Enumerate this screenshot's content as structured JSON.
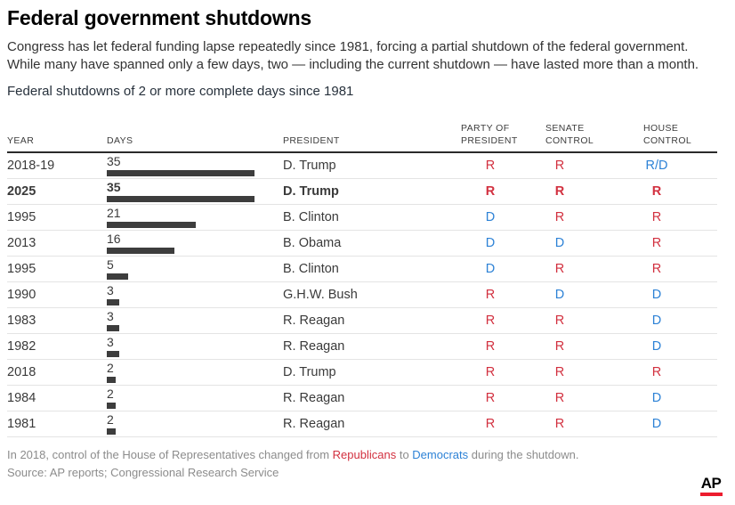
{
  "colors": {
    "republican_red": "#d2303f",
    "democrat_blue": "#2d82d6",
    "bar_gray": "#3d3d3d",
    "logo_red": "#ec1c2e"
  },
  "header": {
    "title": "Federal government shutdowns",
    "description": "Congress has let federal funding lapse repeatedly since 1981, forcing a partial shutdown of the federal government. While many have spanned only a few days, two — including the current shutdown — have lasted more than a month.",
    "subtitle": "Federal shutdowns of 2 or more complete days since 1981"
  },
  "table": {
    "columns": [
      {
        "key": "year",
        "label": "YEAR"
      },
      {
        "key": "days",
        "label": "DAYS"
      },
      {
        "key": "president",
        "label": "PRESIDENT"
      },
      {
        "key": "party",
        "label": "PARTY OF\nPRESIDENT"
      },
      {
        "key": "senate",
        "label": "SENATE\nCONTROL"
      },
      {
        "key": "house",
        "label": "HOUSE\nCONTROL"
      }
    ],
    "rows": [
      {
        "year": "2018-19",
        "days": 35,
        "president": "D. Trump",
        "party": {
          "text": "R",
          "color": "red"
        },
        "senate": {
          "text": "R",
          "color": "red"
        },
        "house": {
          "text": "R/D",
          "color": "blue"
        },
        "bold": false
      },
      {
        "year": "2025",
        "days": 35,
        "president": "D. Trump",
        "party": {
          "text": "R",
          "color": "red"
        },
        "senate": {
          "text": "R",
          "color": "red"
        },
        "house": {
          "text": "R",
          "color": "red"
        },
        "bold": true
      },
      {
        "year": "1995",
        "days": 21,
        "president": "B. Clinton",
        "party": {
          "text": "D",
          "color": "blue"
        },
        "senate": {
          "text": "R",
          "color": "red"
        },
        "house": {
          "text": "R",
          "color": "red"
        },
        "bold": false
      },
      {
        "year": "2013",
        "days": 16,
        "president": "B. Obama",
        "party": {
          "text": "D",
          "color": "blue"
        },
        "senate": {
          "text": "D",
          "color": "blue"
        },
        "house": {
          "text": "R",
          "color": "red"
        },
        "bold": false
      },
      {
        "year": "1995",
        "days": 5,
        "president": "B. Clinton",
        "party": {
          "text": "D",
          "color": "blue"
        },
        "senate": {
          "text": "R",
          "color": "red"
        },
        "house": {
          "text": "R",
          "color": "red"
        },
        "bold": false
      },
      {
        "year": "1990",
        "days": 3,
        "president": "G.H.W. Bush",
        "party": {
          "text": "R",
          "color": "red"
        },
        "senate": {
          "text": "D",
          "color": "blue"
        },
        "house": {
          "text": "D",
          "color": "blue"
        },
        "bold": false
      },
      {
        "year": "1983",
        "days": 3,
        "president": "R. Reagan",
        "party": {
          "text": "R",
          "color": "red"
        },
        "senate": {
          "text": "R",
          "color": "red"
        },
        "house": {
          "text": "D",
          "color": "blue"
        },
        "bold": false
      },
      {
        "year": "1982",
        "days": 3,
        "president": "R. Reagan",
        "party": {
          "text": "R",
          "color": "red"
        },
        "senate": {
          "text": "R",
          "color": "red"
        },
        "house": {
          "text": "D",
          "color": "blue"
        },
        "bold": false
      },
      {
        "year": "2018",
        "days": 2,
        "president": "D. Trump",
        "party": {
          "text": "R",
          "color": "red"
        },
        "senate": {
          "text": "R",
          "color": "red"
        },
        "house": {
          "text": "R",
          "color": "red"
        },
        "bold": false
      },
      {
        "year": "1984",
        "days": 2,
        "president": "R. Reagan",
        "party": {
          "text": "R",
          "color": "red"
        },
        "senate": {
          "text": "R",
          "color": "red"
        },
        "house": {
          "text": "D",
          "color": "blue"
        },
        "bold": false
      },
      {
        "year": "1981",
        "days": 2,
        "president": "R. Reagan",
        "party": {
          "text": "R",
          "color": "red"
        },
        "senate": {
          "text": "R",
          "color": "red"
        },
        "house": {
          "text": "D",
          "color": "blue"
        },
        "bold": false
      }
    ]
  },
  "chart_data": {
    "type": "bar",
    "orientation": "horizontal",
    "title": "Federal shutdowns of 2 or more complete days since 1981",
    "categories": [
      "2018-19",
      "2025",
      "1995",
      "2013",
      "1995",
      "1990",
      "1983",
      "1982",
      "2018",
      "1984",
      "1981"
    ],
    "values": [
      35,
      35,
      21,
      16,
      5,
      3,
      3,
      3,
      2,
      2,
      2
    ],
    "series_name": "Days",
    "xlabel": "DAYS",
    "ylabel": "YEAR",
    "xlim": [
      0,
      35
    ],
    "grid": false,
    "bar_color": "#3d3d3d",
    "annotations": {
      "presidents": [
        "D. Trump",
        "D. Trump",
        "B. Clinton",
        "B. Obama",
        "B. Clinton",
        "G.H.W. Bush",
        "R. Reagan",
        "R. Reagan",
        "D. Trump",
        "R. Reagan",
        "R. Reagan"
      ],
      "party_of_president": [
        "R",
        "R",
        "D",
        "D",
        "D",
        "R",
        "R",
        "R",
        "R",
        "R",
        "R"
      ],
      "senate_control": [
        "R",
        "R",
        "R",
        "D",
        "R",
        "D",
        "R",
        "R",
        "R",
        "R",
        "R"
      ],
      "house_control": [
        "R/D",
        "R",
        "R",
        "R",
        "R",
        "D",
        "D",
        "D",
        "R",
        "D",
        "D"
      ],
      "highlighted_row": "2025"
    }
  },
  "footer": {
    "note": {
      "before": "In 2018, control of the House of Representatives changed from ",
      "republicans": "Republicans",
      "middle": " to ",
      "democrats": "Democrats",
      "after": " during the shutdown."
    },
    "source": "Source: AP reports; Congressional Research Service",
    "logo": "AP"
  }
}
